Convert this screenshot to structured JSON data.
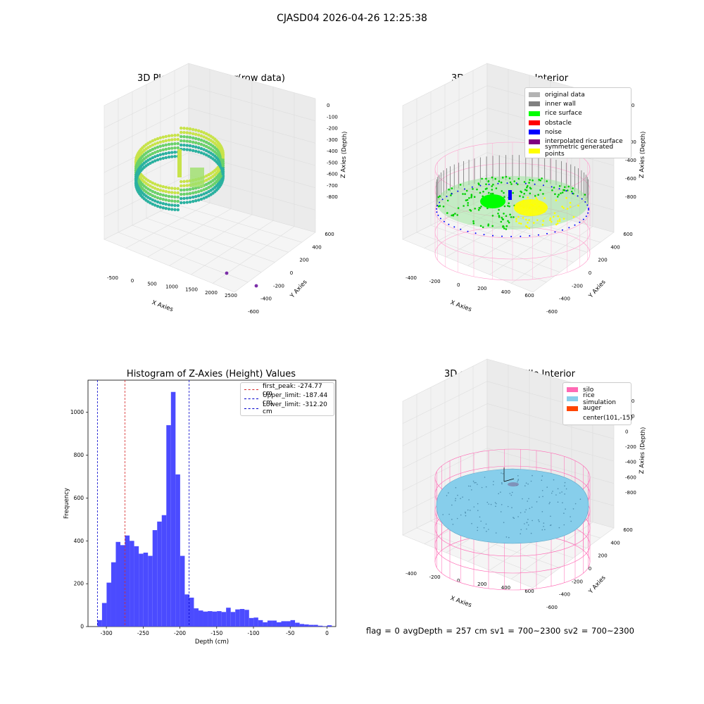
{
  "figure": {
    "title": "CJASD04 2026-04-26 12:25:38",
    "footer": "flag = 0     avgDepth = 257 cm  sv1 = 700~2300  sv2 = 700~2300"
  },
  "colors": {
    "histogram_bar": "#4b4bff",
    "first_peak_line": "#d62728",
    "limit_line": "#0000cc",
    "silo": "#ff69b4",
    "rice_simulation": "#87ceeb",
    "auger": "#ff4500",
    "original_data": "#b3b3b3",
    "inner_wall": "#808080",
    "rice_surface": "#00ff00",
    "obstacle": "#ff0000",
    "noise": "#0000ff",
    "interpolated_rice_surface": "#800080",
    "symmetric_generated_points": "#ffff00"
  },
  "panels": {
    "raw": {
      "title": "3D Plot of Silo Interior(row data)",
      "xlabel": "X Axies",
      "ylabel": "Y Axies",
      "zlabel": "Z Axies (Depth)",
      "xticks": [
        "-500",
        "0",
        "500",
        "1000",
        "1500",
        "2000",
        "2500"
      ],
      "yticks": [
        "-600",
        "-400",
        "-200",
        "0",
        "200",
        "400",
        "600"
      ],
      "zticks": [
        "0",
        "-100",
        "-200",
        "-300",
        "-400",
        "-500",
        "-600",
        "-700",
        "-800"
      ]
    },
    "classify": {
      "title": "3D classify of Silo Interior",
      "xlabel": "X Axies",
      "ylabel": "Y Axies",
      "zlabel": "Z Axies (Depth)",
      "xticks": [
        "-400",
        "-200",
        "0",
        "200",
        "400",
        "600"
      ],
      "yticks": [
        "-600",
        "-400",
        "-200",
        "0",
        "200",
        "400",
        "600"
      ],
      "zticks": [
        "200",
        "0",
        "-200",
        "-400",
        "-600",
        "-800"
      ],
      "legend": [
        {
          "label": "original data",
          "color": "#b3b3b3"
        },
        {
          "label": "inner wall",
          "color": "#808080"
        },
        {
          "label": "rice surface",
          "color": "#00ff00"
        },
        {
          "label": "obstacle",
          "color": "#ff0000"
        },
        {
          "label": "noise",
          "color": "#0000ff"
        },
        {
          "label": "interpolated rice surface",
          "color": "#800080"
        },
        {
          "label": "symmetric generated points",
          "color": "#ffff00"
        }
      ]
    },
    "simulation": {
      "title": "3D simulation of Silo Interior",
      "xlabel": "X Axies",
      "ylabel": "Y Axies",
      "zlabel": "Z Axies (Depth)",
      "xticks": [
        "-400",
        "-200",
        "0",
        "200",
        "400",
        "600"
      ],
      "yticks": [
        "-600",
        "-400",
        "-200",
        "0",
        "200",
        "400",
        "600"
      ],
      "zticks": [
        "400",
        "200",
        "0",
        "-200",
        "-400",
        "-600",
        "-800"
      ],
      "legend": [
        {
          "label": "silo",
          "color": "#ff69b4"
        },
        {
          "label": "rice simulation",
          "color": "#87ceeb"
        },
        {
          "label": "auger",
          "color": "#ff4500"
        },
        {
          "label": "center(101,-15)",
          "color": ""
        }
      ]
    }
  },
  "chart_data": [
    {
      "type": "bar",
      "title": "Histogram of Z-Axies (Height) Values",
      "xlabel": "Depth (cm)",
      "ylabel": "Frequency",
      "xlim": [
        -325,
        12
      ],
      "ylim": [
        0,
        1150
      ],
      "xticks": [
        -300,
        -250,
        -200,
        -150,
        -100,
        -50,
        0
      ],
      "yticks": [
        0,
        200,
        400,
        600,
        800,
        1000
      ],
      "bin_width": 6.25,
      "bin_start": -312.2,
      "values": [
        30,
        110,
        205,
        300,
        395,
        380,
        425,
        400,
        375,
        340,
        345,
        330,
        450,
        490,
        520,
        940,
        1095,
        710,
        330,
        150,
        135,
        85,
        75,
        70,
        72,
        70,
        72,
        68,
        88,
        68,
        80,
        82,
        78,
        40,
        42,
        30,
        20,
        28,
        28,
        20,
        25,
        25,
        30,
        18,
        12,
        10,
        8,
        8,
        4,
        2,
        6
      ],
      "lines": [
        {
          "name": "first_peak: -274.77 cm",
          "x": -274.77,
          "color": "#d62728"
        },
        {
          "name": "Upper_limit: -187.44 cm",
          "x": -187.44,
          "color": "#0000cc"
        },
        {
          "name": "Lower_limit: -312.20 cm",
          "x": -312.2,
          "color": "#0000cc"
        }
      ],
      "grid": false,
      "legend_position": "top-right"
    }
  ]
}
